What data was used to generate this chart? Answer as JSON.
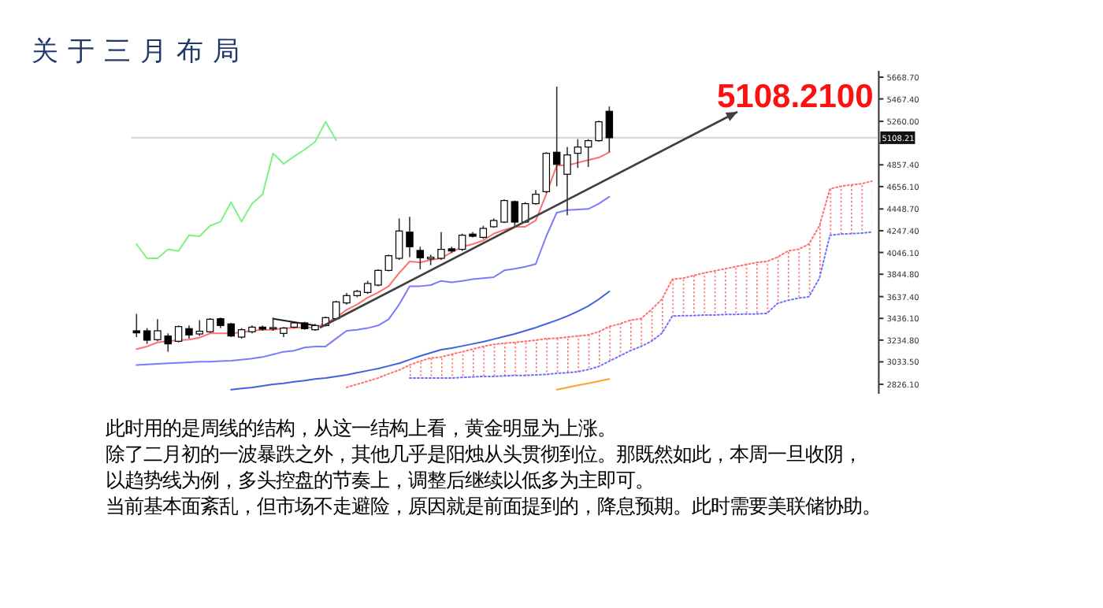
{
  "chart_data": {
    "type": "candlestick",
    "title": "关于三月布局",
    "categories": [
      null,
      null,
      null,
      null,
      null,
      null,
      null,
      null,
      null,
      null,
      null,
      null,
      null,
      null,
      null,
      null,
      null,
      null,
      null,
      null,
      null,
      null,
      null,
      null,
      null,
      null,
      null,
      null,
      null,
      null,
      null,
      null,
      null,
      null,
      null,
      null,
      null,
      null,
      null,
      null,
      null,
      null,
      null,
      null,
      null,
      null,
      null,
      null,
      null,
      null,
      null,
      null,
      null,
      null,
      null,
      null,
      null,
      null,
      null,
      null,
      null,
      null,
      null,
      null,
      null,
      null,
      null,
      null,
      null,
      null,
      null
    ],
    "ohlc": [
      [
        3321,
        3477,
        3263,
        3302
      ],
      [
        3321,
        3346,
        3200,
        3234
      ],
      [
        3239,
        3428,
        3224,
        3321
      ],
      [
        3273,
        3297,
        3127,
        3200
      ],
      [
        3224,
        3370,
        3214,
        3360
      ],
      [
        3341,
        3370,
        3248,
        3283
      ],
      [
        3292,
        3419,
        3273,
        3317
      ],
      [
        3312,
        3438,
        3302,
        3428
      ],
      [
        3433,
        3443,
        3346,
        3370
      ],
      [
        3385,
        3394,
        3263,
        3273
      ],
      [
        3263,
        3346,
        3248,
        3331
      ],
      [
        3312,
        3370,
        3297,
        3355
      ],
      [
        3355,
        3370,
        3321,
        3336
      ],
      [
        3341,
        3443,
        3321,
        3351
      ],
      [
        3297,
        3355,
        3263,
        3346
      ],
      [
        3355,
        3404,
        3346,
        3394
      ],
      [
        3394,
        3404,
        3331,
        3341
      ],
      [
        3331,
        3385,
        3321,
        3370
      ],
      [
        3370,
        3453,
        3360,
        3443
      ],
      [
        3433,
        3598,
        3419,
        3589
      ],
      [
        3579,
        3671,
        3564,
        3647
      ],
      [
        3647,
        3700,
        3632,
        3686
      ],
      [
        3676,
        3783,
        3662,
        3759
      ],
      [
        3744,
        3890,
        3734,
        3880
      ],
      [
        3880,
        4026,
        3871,
        4016
      ],
      [
        3992,
        4361,
        3977,
        4245
      ],
      [
        4235,
        4376,
        4002,
        4099
      ],
      [
        4065,
        4099,
        3890,
        3997
      ],
      [
        3987,
        4026,
        3929,
        4002
      ],
      [
        3992,
        4235,
        3977,
        4075
      ],
      [
        4080,
        4099,
        4041,
        4060
      ],
      [
        4075,
        4220,
        4060,
        4206
      ],
      [
        4216,
        4235,
        4186,
        4196
      ],
      [
        4186,
        4293,
        4172,
        4269
      ],
      [
        4284,
        4361,
        4274,
        4342
      ],
      [
        4327,
        4536,
        4318,
        4527
      ],
      [
        4517,
        4527,
        4293,
        4327
      ],
      [
        4327,
        4512,
        4318,
        4498
      ],
      [
        4498,
        4624,
        4488,
        4585
      ],
      [
        4609,
        4974,
        4595,
        4964
      ],
      [
        4974,
        5581,
        4658,
        4862
      ],
      [
        4770,
        5022,
        4391,
        4949
      ],
      [
        4964,
        5095,
        4828,
        5022
      ],
      [
        5022,
        5095,
        4838,
        5081
      ],
      [
        5081,
        5265,
        5071,
        5256
      ],
      [
        5353,
        5397,
        4974,
        5108.21
      ],
      null,
      null,
      null,
      null,
      null,
      null,
      null,
      null,
      null,
      null,
      null,
      null,
      null,
      null,
      null,
      null,
      null,
      null,
      null,
      null,
      null,
      null,
      null,
      null,
      null
    ],
    "ylim": [
      2738,
      5727
    ],
    "yticks": [
      {
        "value": 5668.7,
        "label": "5668.70"
      },
      {
        "value": 5467.4,
        "label": "5467.40"
      },
      {
        "value": 5260,
        "label": "5260.00"
      },
      {
        "value": 5058.7,
        "label": null
      },
      {
        "value": 4857.4,
        "label": "4857.40"
      },
      {
        "value": 4656.1,
        "label": "4656.10"
      },
      {
        "value": 4448.7,
        "label": "4448.70"
      },
      {
        "value": 4247.4,
        "label": "4247.40"
      },
      {
        "value": 4046.1,
        "label": "4046.10"
      },
      {
        "value": 3844.8,
        "label": "3844.80"
      },
      {
        "value": 3637.4,
        "label": "3637.40"
      },
      {
        "value": 3436.1,
        "label": "3436.10"
      },
      {
        "value": 3234.8,
        "label": "3234.80"
      },
      {
        "value": 3033.5,
        "label": "3033.50"
      },
      {
        "value": 2826.1,
        "label": "2826.10"
      }
    ],
    "tick_labels": "y",
    "series": [
      {
        "type": "line",
        "color": "#ff7070",
        "line_style": "dotted",
        "values": [
          null,
          null,
          null,
          null,
          null,
          null,
          null,
          null,
          null,
          null,
          null,
          null,
          null,
          null,
          null,
          null,
          null,
          null,
          null,
          null,
          2797,
          2826,
          2855,
          2884,
          2923,
          2957,
          3005,
          3040,
          3069,
          3078,
          3103,
          3127,
          3151,
          3176,
          3195,
          3205,
          3214,
          3224,
          3234,
          3248,
          3253,
          3263,
          3273,
          3283,
          3312,
          3360,
          3385,
          3419,
          3433,
          3516,
          3613,
          3798,
          3807,
          3832,
          3856,
          3875,
          3895,
          3914,
          3934,
          3953,
          3963,
          4002,
          4060,
          4075,
          4123,
          4293,
          4634,
          4658,
          4672,
          4682,
          4706
        ],
        "upper": [
          null,
          null,
          null,
          null,
          null,
          null,
          null,
          null,
          null,
          null,
          null,
          null,
          null,
          null,
          null,
          null,
          null,
          null,
          null,
          null,
          null,
          null,
          null,
          null,
          null,
          null,
          3005,
          3040,
          3069,
          3078,
          3103,
          3127,
          3151,
          3176,
          3195,
          3205,
          3214,
          3224,
          3234,
          3248,
          3253,
          3263,
          3273,
          3283,
          3312,
          3360,
          3385,
          3419,
          3433,
          3516,
          3613,
          3798,
          3807,
          3832,
          3856,
          3875,
          3895,
          3914,
          3934,
          3953,
          3963,
          4002,
          4060,
          4075,
          4123,
          4293,
          4634,
          4658,
          4672,
          4682,
          4706
        ],
        "lower": [
          null,
          null,
          null,
          null,
          null,
          null,
          null,
          null,
          null,
          null,
          null,
          null,
          null,
          null,
          null,
          null,
          null,
          null,
          null,
          null,
          null,
          null,
          null,
          null,
          null,
          null,
          2884,
          2884,
          2884,
          2884,
          2884,
          2889,
          2894,
          2899,
          2899,
          2903,
          2908,
          2908,
          2913,
          2918,
          2928,
          2933,
          2942,
          2962,
          2991,
          3040,
          3088,
          3137,
          3176,
          3224,
          3297,
          3457,
          3462,
          3462,
          3467,
          3467,
          3472,
          3472,
          3477,
          3477,
          3482,
          3574,
          3603,
          3623,
          3637,
          3807,
          4206,
          4216,
          4220,
          4225,
          4235
        ]
      },
      {
        "type": "line",
        "color": "#7070ff",
        "line_style": "dotted",
        "values": [
          null,
          null,
          null,
          null,
          null,
          null,
          null,
          null,
          null,
          null,
          null,
          null,
          null,
          null,
          null,
          null,
          null,
          null,
          null,
          null,
          null,
          null,
          null,
          null,
          null,
          null,
          2884,
          2884,
          2884,
          2884,
          2884,
          2889,
          2894,
          2899,
          2899,
          2903,
          2908,
          2908,
          2913,
          2918,
          2928,
          2933,
          2942,
          2962,
          2991,
          3040,
          3088,
          3137,
          3176,
          3224,
          3297,
          3457,
          3462,
          3462,
          3467,
          3467,
          3472,
          3472,
          3477,
          3477,
          3482,
          3574,
          3603,
          3623,
          3637,
          3807,
          4206,
          4216,
          4220,
          4225,
          4235
        ]
      },
      {
        "type": "line",
        "color": "#3d63e0",
        "values": [
          null,
          null,
          null,
          null,
          null,
          null,
          null,
          null,
          null,
          2777,
          2787,
          2797,
          2811,
          2826,
          2835,
          2850,
          2860,
          2874,
          2884,
          2899,
          2913,
          2933,
          2952,
          2971,
          2996,
          3020,
          3054,
          3088,
          3117,
          3146,
          3161,
          3180,
          3200,
          3219,
          3244,
          3268,
          3292,
          3321,
          3351,
          3385,
          3419,
          3457,
          3501,
          3550,
          3613,
          3686,
          null,
          null,
          null,
          null,
          null,
          null,
          null,
          null,
          null,
          null,
          null,
          null,
          null,
          null,
          null,
          null,
          null,
          null,
          null,
          null,
          null,
          null,
          null,
          null,
          null
        ]
      },
      {
        "type": "line",
        "color": "#ffa030",
        "values": [
          null,
          null,
          null,
          null,
          null,
          null,
          null,
          null,
          null,
          null,
          null,
          null,
          null,
          null,
          null,
          null,
          null,
          null,
          null,
          null,
          null,
          null,
          null,
          null,
          null,
          null,
          null,
          null,
          null,
          null,
          null,
          null,
          null,
          null,
          null,
          null,
          null,
          null,
          null,
          null,
          2777,
          2797,
          2816,
          2835,
          2855,
          2874,
          null,
          null,
          null,
          null,
          null,
          null,
          null,
          null,
          null,
          null,
          null,
          null,
          null,
          null,
          null,
          null,
          null,
          null,
          null,
          null,
          null,
          null,
          null,
          null,
          null
        ]
      },
      {
        "type": "line",
        "color": "#7a7aff",
        "values": [
          3005,
          3010,
          3015,
          3020,
          3025,
          3030,
          3035,
          3035,
          3040,
          3044,
          3054,
          3064,
          3078,
          3103,
          3127,
          3137,
          3166,
          3176,
          3176,
          3249,
          3321,
          3331,
          3346,
          3370,
          3428,
          3564,
          3734,
          3734,
          3744,
          3783,
          3769,
          3783,
          3798,
          3807,
          3817,
          3880,
          3895,
          3914,
          3939,
          4196,
          4415,
          4439,
          4444,
          4449,
          4498,
          4561,
          null,
          null,
          null,
          null,
          null,
          null,
          null,
          null,
          null,
          null,
          null,
          null,
          null,
          null,
          null,
          null,
          null,
          null,
          null,
          null,
          null,
          null,
          null,
          null,
          null
        ]
      },
      {
        "type": "line",
        "color": "#ff6f6f",
        "values": [
          3151,
          3176,
          3214,
          3224,
          3234,
          3239,
          3258,
          3297,
          3297,
          3297,
          3307,
          3321,
          3331,
          3331,
          3346,
          3346,
          3355,
          3346,
          3394,
          3443,
          3516,
          3564,
          3628,
          3676,
          3734,
          3856,
          3963,
          3953,
          3977,
          3992,
          4050,
          4099,
          4123,
          4157,
          4220,
          4255,
          4284,
          4284,
          4342,
          4585,
          4852,
          4852,
          4877,
          4901,
          4925,
          4974,
          null,
          null,
          null,
          null,
          null,
          null,
          null,
          null,
          null,
          null,
          null,
          null,
          null,
          null,
          null,
          null,
          null,
          null,
          null,
          null,
          null,
          null,
          null,
          null,
          null
        ]
      },
      {
        "type": "line",
        "color": "#80f080",
        "values": [
          4123,
          3992,
          3992,
          4075,
          4060,
          4206,
          4196,
          4293,
          4332,
          4512,
          4332,
          4498,
          4585,
          4964,
          4867,
          4935,
          4998,
          5071,
          5256,
          5086,
          null,
          null,
          null,
          null,
          null,
          null,
          null,
          null,
          null,
          null,
          null,
          null,
          null,
          null,
          null,
          null,
          null,
          null,
          null,
          null,
          null,
          null,
          null,
          null,
          null,
          null,
          null,
          null,
          null,
          null,
          null,
          null,
          null,
          null,
          null,
          null,
          null,
          null,
          null,
          null,
          null,
          null,
          null,
          null,
          null,
          null,
          null,
          null,
          null,
          null,
          null
        ]
      },
      {
        "type": "line",
        "color": "#202020",
        "values": [
          null,
          null,
          null,
          null,
          null,
          null,
          null,
          null,
          null,
          null,
          null,
          null,
          null,
          3433,
          null,
          null,
          null,
          3370,
          null,
          null,
          null,
          null,
          null,
          null,
          null,
          null,
          null,
          null,
          null,
          null,
          null,
          null,
          null,
          null,
          null,
          null,
          null,
          null,
          null,
          null,
          null,
          null,
          null,
          null,
          null,
          null,
          null,
          null,
          null,
          null,
          null,
          null,
          null,
          null,
          null,
          null,
          null,
          null,
          null,
          null,
          null,
          null,
          null,
          null,
          null,
          null,
          null,
          null,
          null,
          null,
          null
        ]
      }
    ],
    "ref_lines": [
      {
        "axis": "y",
        "value": 5108.21,
        "label": "5108.21",
        "color": "#d8d8d8"
      }
    ],
    "annotations": [
      "5108.2100",
      "此时用的是周线的结构，从这一结构上看，黄金明显为上涨。",
      "除了二月初的一波暴跌之外，其他几乎是阳烛从头贯彻到位。那既然如此，本周一旦收阴，",
      "以趋势线为例，多头控盘的节奏上，调整后继续以低多为主即可。",
      "当前基本面紊乱，但市场不走避险，原因就是前面提到的，降息预期。此时需要美联储协助。"
    ]
  }
}
